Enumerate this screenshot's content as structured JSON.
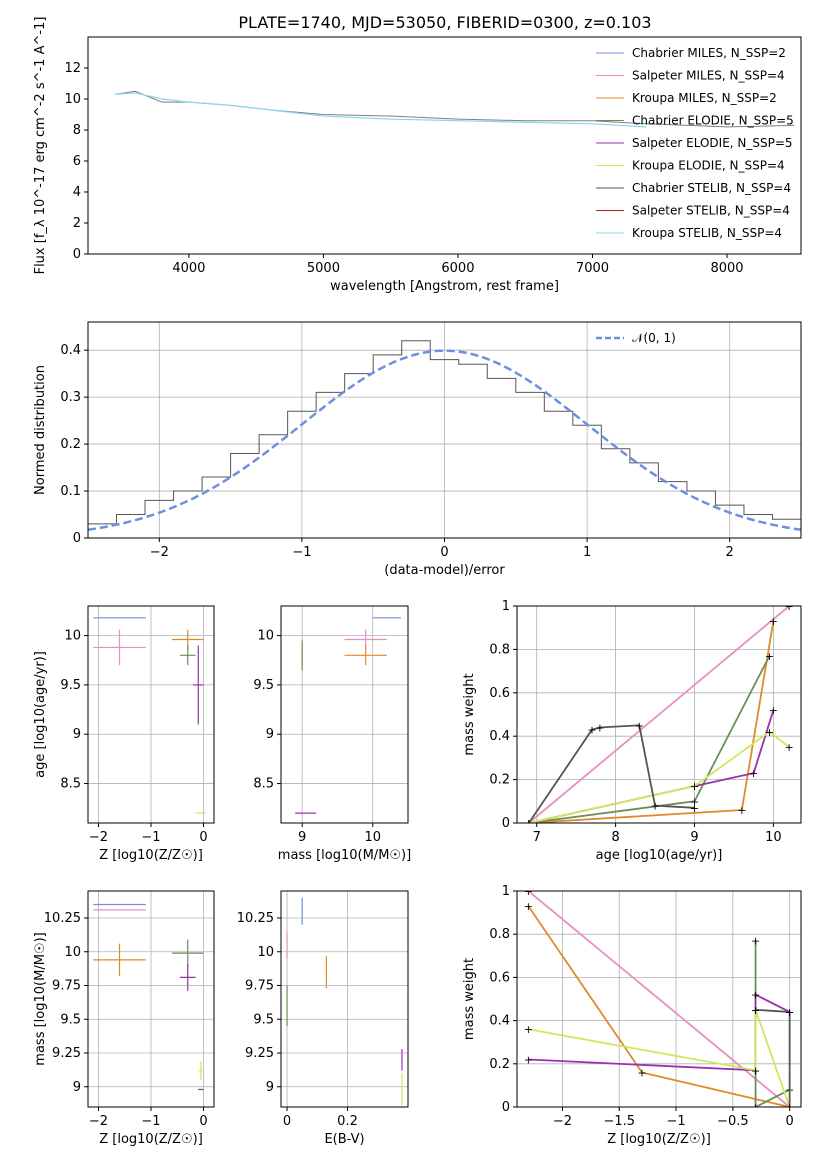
{
  "figure": {
    "title": "PLATE=1740, MJD=53050, FIBERID=0300, z=0.103"
  },
  "colors": [
    "#6d8fe0",
    "#e88ec4",
    "#e08a28",
    "#6b8e5a",
    "#9b30b0",
    "#cfe85a",
    "#555555",
    "#b22222",
    "#88d8e8"
  ],
  "chart_data": [
    {
      "id": "spectrum",
      "type": "line",
      "xlabel": "wavelength [Angstrom, rest frame]",
      "ylabel": "Flux [f_λ 10^-17 erg cm^-2 s^-1 A^-1]",
      "xlim": [
        3250,
        8550
      ],
      "ylim": [
        0,
        14
      ],
      "xticks": [
        4000,
        5000,
        6000,
        7000,
        8000
      ],
      "yticks": [
        0,
        2,
        4,
        6,
        8,
        10,
        12
      ],
      "grid": false,
      "legend_position": "top-right",
      "legend": [
        "Chabrier MILES, N_SSP=2",
        "Salpeter MILES, N_SSP=4",
        "Kroupa MILES, N_SSP=2",
        "Chabrier ELODIE, N_SSP=5",
        "Salpeter ELODIE, N_SSP=5",
        "Kroupa ELODIE, N_SSP=4",
        "Chabrier STELIB, N_SSP=4",
        "Salpeter STELIB, N_SSP=4",
        "Kroupa STELIB, N_SSP=4"
      ],
      "data_series": {
        "name": "data",
        "x": [
          3450,
          3600,
          3800,
          4000,
          4300,
          4600,
          5000,
          5500,
          6000,
          6500,
          7000,
          7400,
          8000,
          8500
        ],
        "y": [
          10.3,
          10.5,
          9.8,
          9.8,
          9.6,
          9.3,
          9.0,
          8.9,
          8.7,
          8.6,
          8.6,
          8.4,
          8.2,
          8.3
        ]
      },
      "model_series": {
        "name": "model",
        "x": [
          3450,
          3600,
          3800,
          4000,
          4300,
          4600,
          5000,
          5500,
          6000,
          6500,
          7000,
          7400
        ],
        "y": [
          10.3,
          10.4,
          10.0,
          9.8,
          9.6,
          9.3,
          8.9,
          8.7,
          8.6,
          8.5,
          8.4,
          8.2
        ]
      }
    },
    {
      "id": "residuals",
      "type": "line",
      "xlabel": "(data-model)/error",
      "ylabel": "Normed distribution",
      "xlim": [
        -2.5,
        2.5
      ],
      "ylim": [
        0,
        0.46
      ],
      "xticks": [
        -2,
        -1,
        0,
        1,
        2
      ],
      "yticks": [
        0.0,
        0.1,
        0.2,
        0.3,
        0.4
      ],
      "grid": true,
      "legend_position": "top-right",
      "legend": [
        "𝒩(0, 1)"
      ],
      "histogram_x": [
        -2.5,
        -2.3,
        -2.1,
        -1.9,
        -1.7,
        -1.5,
        -1.3,
        -1.1,
        -0.9,
        -0.7,
        -0.5,
        -0.3,
        -0.1,
        0.1,
        0.3,
        0.5,
        0.7,
        0.9,
        1.1,
        1.3,
        1.5,
        1.7,
        1.9,
        2.1,
        2.3,
        2.5
      ],
      "histogram_y": [
        0.03,
        0.05,
        0.08,
        0.1,
        0.13,
        0.18,
        0.22,
        0.27,
        0.31,
        0.35,
        0.39,
        0.42,
        0.38,
        0.37,
        0.34,
        0.31,
        0.27,
        0.24,
        0.19,
        0.16,
        0.12,
        0.1,
        0.07,
        0.05,
        0.04,
        0.03
      ]
    },
    {
      "id": "age_vs_Z",
      "type": "scatter",
      "xlabel": "Z [log10(Z/Z☉)]",
      "ylabel": "age [log10(age/yr)]",
      "xlim": [
        -2.2,
        0.2
      ],
      "ylim": [
        8.1,
        10.3
      ],
      "xticks": [
        -2,
        -1,
        0
      ],
      "yticks": [
        8.5,
        9.0,
        9.5,
        10.0
      ],
      "grid": true,
      "points": [
        {
          "x": -1.6,
          "y": 10.18,
          "xerr": 0.5,
          "yerr": 0.0
        },
        {
          "x": -1.6,
          "y": 9.88,
          "xerr": 0.5,
          "yerr": 0.18
        },
        {
          "x": -0.3,
          "y": 9.96,
          "xerr": 0.3,
          "yerr": 0.1
        },
        {
          "x": -0.3,
          "y": 9.8,
          "xerr": 0.15,
          "yerr": 0.1
        },
        {
          "x": -0.1,
          "y": 9.5,
          "xerr": 0.1,
          "yerr": 0.4
        },
        {
          "x": -0.05,
          "y": 8.2,
          "xerr": 0.1,
          "yerr": 0.0
        }
      ]
    },
    {
      "id": "age_vs_mass",
      "type": "scatter",
      "xlabel": "mass [log10(M/M☉)]",
      "ylabel": "",
      "xlim": [
        8.7,
        10.5
      ],
      "ylim": [
        8.1,
        10.3
      ],
      "xticks": [
        9,
        10
      ],
      "yticks": [
        8.5,
        9.0,
        9.5,
        10.0
      ],
      "grid": true,
      "points": [
        {
          "x": 10.2,
          "y": 10.18,
          "xerr": 0.2,
          "yerr": 0.0
        },
        {
          "x": 9.9,
          "y": 9.96,
          "xerr": 0.3,
          "yerr": 0.1
        },
        {
          "x": 9.9,
          "y": 9.8,
          "xerr": 0.3,
          "yerr": 0.1
        },
        {
          "x": 9.0,
          "y": 9.8,
          "xerr": 0.0,
          "yerr": 0.15
        },
        {
          "x": 9.05,
          "y": 8.2,
          "xerr": 0.15,
          "yerr": 0.0
        }
      ]
    },
    {
      "id": "mass_weight_vs_age",
      "type": "line",
      "xlabel": "age [log10(age/yr)]",
      "ylabel": "mass weight",
      "xlim": [
        6.75,
        10.35
      ],
      "ylim": [
        0,
        1.0
      ],
      "xticks": [
        7,
        8,
        9,
        10
      ],
      "yticks": [
        0.0,
        0.2,
        0.4,
        0.6,
        0.8,
        1.0
      ],
      "grid": true,
      "series": [
        {
          "x": [
            6.9,
            10.2
          ],
          "y": [
            0.0,
            1.0
          ]
        },
        {
          "x": [
            6.9,
            9.6,
            10.0
          ],
          "y": [
            0.0,
            0.06,
            0.93
          ]
        },
        {
          "x": [
            6.9,
            9.0,
            9.95
          ],
          "y": [
            0.0,
            0.1,
            0.77
          ]
        },
        {
          "x": [
            6.9,
            9.0,
            9.75,
            10.0
          ],
          "y": [
            0.0,
            0.17,
            0.23,
            0.52
          ]
        },
        {
          "x": [
            6.9,
            9.0,
            9.95,
            10.2
          ],
          "y": [
            0.0,
            0.17,
            0.42,
            0.35
          ]
        },
        {
          "x": [
            6.9,
            7.7,
            7.8,
            8.3,
            8.5,
            9.0
          ],
          "y": [
            0.0,
            0.43,
            0.44,
            0.45,
            0.08,
            0.07
          ]
        }
      ]
    },
    {
      "id": "mass_vs_Z",
      "type": "scatter",
      "xlabel": "Z [log10(Z/Z☉)]",
      "ylabel": "mass [log10(M/M☉)]",
      "xlim": [
        -2.2,
        0.2
      ],
      "ylim": [
        8.85,
        10.45
      ],
      "xticks": [
        -2,
        -1,
        0
      ],
      "yticks": [
        9.0,
        9.25,
        9.5,
        9.75,
        10.0,
        10.25
      ],
      "grid": true,
      "points": [
        {
          "x": -1.6,
          "y": 10.35,
          "xerr": 0.5,
          "yerr": 0.0
        },
        {
          "x": -1.6,
          "y": 10.31,
          "xerr": 0.5,
          "yerr": 0.0
        },
        {
          "x": -1.6,
          "y": 9.94,
          "xerr": 0.5,
          "yerr": 0.12
        },
        {
          "x": -0.3,
          "y": 9.99,
          "xerr": 0.3,
          "yerr": 0.1
        },
        {
          "x": -0.3,
          "y": 9.81,
          "xerr": 0.15,
          "yerr": 0.1
        },
        {
          "x": -0.05,
          "y": 9.12,
          "xerr": 0.05,
          "yerr": 0.07
        },
        {
          "x": -0.05,
          "y": 8.98,
          "xerr": 0.05,
          "yerr": 0.0
        }
      ]
    },
    {
      "id": "mass_vs_EBV",
      "type": "scatter",
      "xlabel": "E(B-V)",
      "ylabel": "",
      "xlim": [
        -0.02,
        0.4
      ],
      "ylim": [
        8.85,
        10.45
      ],
      "xticks": [
        0.0,
        0.2
      ],
      "yticks": [
        9.0,
        9.25,
        9.5,
        9.75,
        10.0,
        10.25
      ],
      "grid": true,
      "points": [
        {
          "x": 0.05,
          "y": 10.3,
          "xerr": 0.0,
          "yerr": 0.1
        },
        {
          "x": 0.0,
          "y": 10.05,
          "xerr": 0.0,
          "yerr": 0.1
        },
        {
          "x": 0.13,
          "y": 9.85,
          "xerr": 0.0,
          "yerr": 0.12
        },
        {
          "x": 0.0,
          "y": 9.6,
          "xerr": 0.0,
          "yerr": 0.15
        },
        {
          "x": 0.38,
          "y": 9.2,
          "xerr": 0.0,
          "yerr": 0.08
        },
        {
          "x": 0.38,
          "y": 8.98,
          "xerr": 0.0,
          "yerr": 0.12
        }
      ]
    },
    {
      "id": "mass_weight_vs_Z",
      "type": "line",
      "xlabel": "Z [log10(Z/Z☉)]",
      "ylabel": "mass weight",
      "xlim": [
        -2.4,
        0.1
      ],
      "ylim": [
        0,
        1.0
      ],
      "xticks": [
        -2.0,
        -1.5,
        -1.0,
        -0.5,
        0.0
      ],
      "yticks": [
        0.0,
        0.2,
        0.4,
        0.6,
        0.8,
        1.0
      ],
      "grid": true,
      "series": [
        {
          "x": [
            -2.3,
            0.0
          ],
          "y": [
            1.0,
            0.0
          ]
        },
        {
          "x": [
            -2.3,
            -1.3,
            0.0
          ],
          "y": [
            0.93,
            0.16,
            0.0
          ]
        },
        {
          "x": [
            -0.3,
            -0.3,
            0.0
          ],
          "y": [
            0.77,
            0.0,
            0.08
          ]
        },
        {
          "x": [
            -2.3,
            -0.3,
            -0.3,
            0.0
          ],
          "y": [
            0.22,
            0.17,
            0.52,
            0.44
          ]
        },
        {
          "x": [
            -2.3,
            -0.3,
            -0.3,
            0.0
          ],
          "y": [
            0.36,
            0.17,
            0.45,
            0.0
          ]
        },
        {
          "x": [
            -0.3,
            0.0,
            0.0
          ],
          "y": [
            0.45,
            0.44,
            0.0
          ]
        }
      ]
    }
  ]
}
